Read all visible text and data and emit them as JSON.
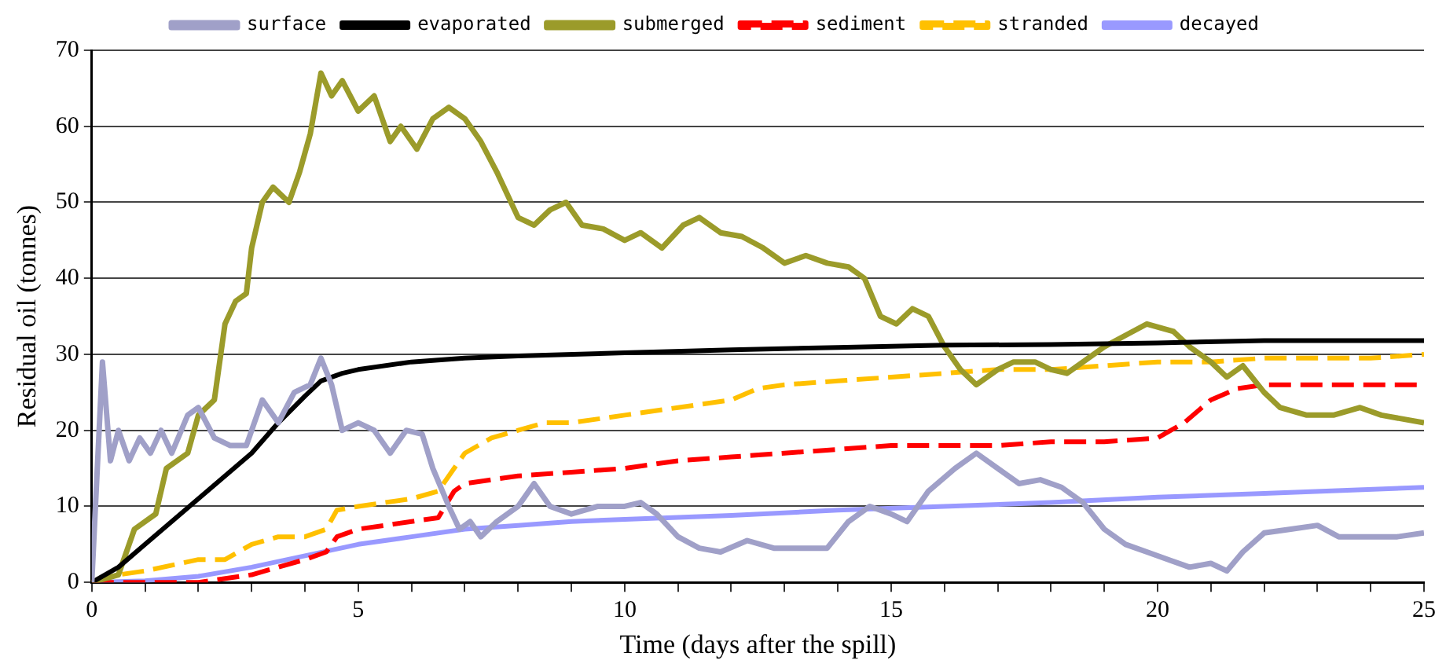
{
  "chart_data": {
    "type": "line",
    "xlabel": "Time (days after the spill)",
    "ylabel": "Residual oil (tonnes)",
    "xlim": [
      0,
      25
    ],
    "ylim": [
      0,
      70
    ],
    "xticks": [
      0,
      {
        "value": 1,
        "label": null
      },
      {
        "value": 2,
        "label": null
      },
      {
        "value": 3,
        "label": null
      },
      {
        "value": 4,
        "label": null
      },
      5,
      {
        "value": 6,
        "label": null
      },
      {
        "value": 7,
        "label": null
      },
      {
        "value": 8,
        "label": null
      },
      {
        "value": 9,
        "label": null
      },
      10,
      {
        "value": 11,
        "label": null
      },
      {
        "value": 12,
        "label": null
      },
      {
        "value": 13,
        "label": null
      },
      {
        "value": 14,
        "label": null
      },
      15,
      {
        "value": 16,
        "label": null
      },
      {
        "value": 17,
        "label": null
      },
      {
        "value": 18,
        "label": null
      },
      {
        "value": 19,
        "label": null
      },
      20,
      {
        "value": 21,
        "label": null
      },
      {
        "value": 22,
        "label": null
      },
      {
        "value": 23,
        "label": null
      },
      {
        "value": 24,
        "label": null
      },
      25
    ],
    "yticks": [
      0,
      10,
      20,
      30,
      40,
      50,
      60,
      70
    ],
    "grid": "y",
    "legend": "top",
    "marker": "none",
    "line_style": "solid",
    "series": [
      {
        "name": "surface",
        "color": "#a0a0c8",
        "x": [
          0,
          0.2,
          0.35,
          0.5,
          0.7,
          0.9,
          1.1,
          1.3,
          1.5,
          1.8,
          2.0,
          2.3,
          2.6,
          2.9,
          3.2,
          3.5,
          3.8,
          4.1,
          4.3,
          4.5,
          4.7,
          5.0,
          5.3,
          5.6,
          5.9,
          6.2,
          6.4,
          6.7,
          6.9,
          7.1,
          7.3,
          7.6,
          8.0,
          8.3,
          8.6,
          9.0,
          9.5,
          10.0,
          10.3,
          10.6,
          11.0,
          11.4,
          11.8,
          12.3,
          12.8,
          13.3,
          13.8,
          14.2,
          14.6,
          15.0,
          15.3,
          15.7,
          16.2,
          16.6,
          17.0,
          17.4,
          17.8,
          18.2,
          18.6,
          19.0,
          19.4,
          19.8,
          20.2,
          20.6,
          21.0,
          21.3,
          21.6,
          22.0,
          22.5,
          23.0,
          23.4,
          24.0,
          24.5,
          25.0
        ],
        "values": [
          0,
          29,
          16,
          20,
          16,
          19,
          17,
          20,
          17,
          22,
          23,
          19,
          18,
          18,
          24,
          21,
          25,
          26,
          29.5,
          26,
          20,
          21,
          20,
          17,
          20,
          19.5,
          15,
          10,
          7,
          8,
          6,
          8,
          10,
          13,
          10,
          9,
          10,
          10,
          10.5,
          9,
          6,
          4.5,
          4,
          5.5,
          4.5,
          4.5,
          4.5,
          8,
          10,
          9,
          8,
          12,
          15,
          17,
          15,
          13,
          13.5,
          12.5,
          10.5,
          7,
          5,
          4,
          3,
          2,
          2.5,
          1.5,
          4,
          6.5,
          7,
          7.5,
          6,
          6,
          6,
          6.5
        ]
      },
      {
        "name": "evaporated",
        "color": "#000000",
        "x": [
          0,
          0.5,
          1,
          2,
          3,
          3.5,
          4,
          4.3,
          4.7,
          5,
          6,
          7,
          8,
          10,
          12,
          14,
          16,
          18,
          20,
          22,
          25
        ],
        "values": [
          0,
          2,
          5,
          11,
          17,
          21,
          24.5,
          26.5,
          27.5,
          28,
          29,
          29.5,
          29.8,
          30.2,
          30.6,
          30.9,
          31.2,
          31.3,
          31.5,
          31.8,
          31.8
        ]
      },
      {
        "name": "submerged",
        "color": "#9b9b2a",
        "x": [
          0,
          0.5,
          0.8,
          1.2,
          1.4,
          1.8,
          2.0,
          2.3,
          2.5,
          2.7,
          2.9,
          3.0,
          3.2,
          3.4,
          3.7,
          3.9,
          4.1,
          4.3,
          4.5,
          4.7,
          5.0,
          5.3,
          5.6,
          5.8,
          6.1,
          6.4,
          6.7,
          7.0,
          7.3,
          7.6,
          8.0,
          8.3,
          8.6,
          8.9,
          9.2,
          9.6,
          10.0,
          10.3,
          10.7,
          11.1,
          11.4,
          11.8,
          12.2,
          12.6,
          13.0,
          13.4,
          13.8,
          14.2,
          14.5,
          14.8,
          15.1,
          15.4,
          15.7,
          16.0,
          16.3,
          16.6,
          17.0,
          17.3,
          17.7,
          18.0,
          18.3,
          18.7,
          19.0,
          19.4,
          19.8,
          20.3,
          20.6,
          21.0,
          21.3,
          21.6,
          22.0,
          22.3,
          22.8,
          23.3,
          23.8,
          24.2,
          25.0
        ],
        "values": [
          0,
          1,
          7,
          9,
          15,
          17,
          22,
          24,
          34,
          37,
          38,
          44,
          50,
          52,
          50,
          54,
          59,
          67,
          64,
          66,
          62,
          64,
          58,
          60,
          57,
          61,
          62.5,
          61,
          58,
          54,
          48,
          47,
          49,
          50,
          47,
          46.5,
          45,
          46,
          44,
          47,
          48,
          46,
          45.5,
          44,
          42,
          43,
          42,
          41.5,
          40,
          35,
          34,
          36,
          35,
          31,
          28,
          26,
          28,
          29,
          29,
          28,
          27.5,
          29.5,
          31,
          32.5,
          34,
          33,
          31,
          29,
          27,
          28.5,
          25,
          23,
          22,
          22,
          23,
          22,
          21
        ]
      },
      {
        "name": "sediment",
        "color": "#ff0000",
        "line_style": "dashed",
        "x": [
          0,
          2,
          3,
          3.5,
          4,
          4.4,
          4.6,
          5,
          5.5,
          6,
          6.5,
          6.8,
          7,
          8,
          9,
          10,
          11,
          12,
          13,
          14,
          15,
          16,
          17,
          18,
          19,
          20,
          20.5,
          21,
          21.5,
          22,
          23,
          24,
          25
        ],
        "values": [
          0,
          0,
          1,
          2,
          3,
          4,
          6,
          7,
          7.5,
          8,
          8.5,
          12,
          13,
          14,
          14.5,
          15,
          16,
          16.5,
          17,
          17.5,
          18,
          18,
          18,
          18.5,
          18.5,
          19,
          21,
          24,
          25.5,
          26,
          26,
          26,
          26
        ]
      },
      {
        "name": "stranded",
        "color": "#ffc000",
        "line_style": "dashed",
        "x": [
          0,
          0.5,
          1,
          2,
          2.5,
          3,
          3.5,
          4,
          4.4,
          4.6,
          5,
          5.5,
          6,
          6.5,
          6.8,
          7,
          7.5,
          8,
          8.5,
          9,
          10,
          11,
          12,
          12.5,
          13,
          14,
          15,
          16,
          17,
          18,
          19,
          20,
          21,
          22,
          23,
          24,
          25
        ],
        "values": [
          0,
          1,
          1.5,
          3,
          3,
          5,
          6,
          6,
          7,
          9.5,
          10,
          10.5,
          11,
          12,
          15,
          17,
          19,
          20,
          21,
          21,
          22,
          23,
          24,
          25.5,
          26,
          26.5,
          27,
          27.5,
          28,
          28,
          28.5,
          29,
          29,
          29.5,
          29.5,
          29.5,
          30
        ]
      },
      {
        "name": "decayed",
        "color": "#9999ff",
        "x": [
          0,
          1,
          2,
          3,
          4,
          5,
          6,
          7,
          8,
          9,
          10,
          12,
          14,
          16,
          18,
          20,
          22,
          25
        ],
        "values": [
          0,
          0.2,
          0.8,
          2,
          3.5,
          5,
          6,
          7,
          7.5,
          8,
          8.3,
          8.8,
          9.5,
          10,
          10.5,
          11.2,
          11.7,
          12.5
        ]
      }
    ]
  }
}
